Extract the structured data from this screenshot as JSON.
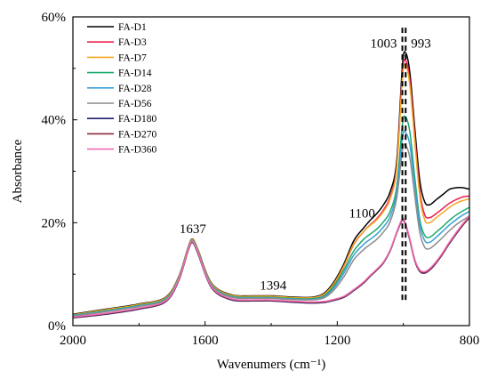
{
  "chart_data": {
    "type": "line",
    "title": "",
    "xlabel": "Wavenumers (cm⁻¹)",
    "ylabel": "Absorbance",
    "xlim": [
      2000,
      800
    ],
    "ylim": [
      0,
      60
    ],
    "x_reversed": true,
    "x_ticks": [
      2000,
      1600,
      1200,
      800
    ],
    "x_tick_labels": [
      "2000",
      "1600",
      "1200",
      "800"
    ],
    "y_ticks": [
      0,
      20,
      40,
      60
    ],
    "y_tick_labels": [
      "0%",
      "20%",
      "40%",
      "60%"
    ],
    "grid": false,
    "legend_position": "top-left",
    "annotations": [
      {
        "text": "1637",
        "x": 1637,
        "y": 18
      },
      {
        "text": "1394",
        "x": 1394,
        "y": 7
      },
      {
        "text": "1100",
        "x": 1125,
        "y": 21
      },
      {
        "text": "1003",
        "x": 1003,
        "y": 54
      },
      {
        "text": "993",
        "x": 993,
        "y": 54
      }
    ],
    "reference_lines": [
      {
        "x": 1003,
        "y_range": [
          5,
          58
        ]
      },
      {
        "x": 993,
        "y_range": [
          5,
          58
        ]
      }
    ],
    "series": [
      {
        "name": "FA-D1",
        "color": "#000000",
        "x": [
          2000,
          1900,
          1800,
          1720,
          1680,
          1650,
          1637,
          1620,
          1580,
          1520,
          1450,
          1400,
          1350,
          1280,
          1240,
          1210,
          1180,
          1150,
          1120,
          1100,
          1080,
          1060,
          1040,
          1020,
          1003,
          993,
          980,
          965,
          950,
          935,
          920,
          900,
          880,
          860,
          840,
          820,
          800
        ],
        "y": [
          2.2,
          3.2,
          4.2,
          5.5,
          9.5,
          15.5,
          16.8,
          14.5,
          8.2,
          6,
          5.8,
          5.8,
          5.6,
          5.5,
          6.3,
          8.5,
          12,
          16.5,
          19,
          20.5,
          21.8,
          23.5,
          26,
          32,
          50.5,
          53,
          49,
          38,
          28,
          24,
          23.5,
          24.5,
          25.5,
          26.5,
          26.8,
          26.8,
          26.5
        ]
      },
      {
        "name": "FA-D3",
        "color": "#ed1c4e",
        "x": [
          2000,
          1900,
          1800,
          1720,
          1680,
          1650,
          1637,
          1620,
          1580,
          1520,
          1450,
          1400,
          1350,
          1280,
          1240,
          1210,
          1180,
          1150,
          1120,
          1100,
          1080,
          1060,
          1040,
          1020,
          1003,
          993,
          980,
          965,
          950,
          935,
          920,
          900,
          880,
          860,
          840,
          820,
          800
        ],
        "y": [
          2,
          3,
          4,
          5.3,
          9.3,
          15.3,
          16.6,
          14.3,
          8,
          5.8,
          5.6,
          5.6,
          5.4,
          5.3,
          6,
          8,
          11.5,
          15.8,
          18.3,
          19.6,
          20.8,
          22.5,
          25,
          31,
          49,
          51.5,
          47.5,
          36.5,
          26,
          21.5,
          21,
          21.8,
          22.8,
          23.8,
          24.5,
          25,
          25.2
        ]
      },
      {
        "name": "FA-D7",
        "color": "#f5a623",
        "x": [
          2000,
          1900,
          1800,
          1720,
          1680,
          1650,
          1637,
          1620,
          1580,
          1520,
          1450,
          1400,
          1350,
          1280,
          1240,
          1210,
          1180,
          1150,
          1120,
          1100,
          1080,
          1060,
          1040,
          1020,
          1003,
          993,
          980,
          965,
          950,
          935,
          920,
          900,
          880,
          860,
          840,
          820,
          800
        ],
        "y": [
          2.1,
          3.1,
          4.1,
          5.4,
          9.4,
          15.4,
          16.7,
          14.4,
          8.1,
          5.9,
          5.7,
          5.7,
          5.5,
          5.4,
          6.1,
          8.2,
          11.6,
          15.9,
          18.3,
          19.5,
          20.6,
          22.2,
          24.6,
          30.5,
          48,
          50.5,
          46.5,
          35.5,
          25,
          20.5,
          20,
          21,
          22,
          23,
          23.8,
          24.3,
          24.6
        ]
      },
      {
        "name": "FA-D14",
        "color": "#1aaa6b",
        "x": [
          2000,
          1900,
          1800,
          1720,
          1680,
          1650,
          1637,
          1620,
          1580,
          1520,
          1450,
          1400,
          1350,
          1280,
          1240,
          1210,
          1180,
          1150,
          1120,
          1100,
          1080,
          1060,
          1040,
          1020,
          1003,
          993,
          980,
          965,
          950,
          935,
          920,
          900,
          880,
          860,
          840,
          820,
          800
        ],
        "y": [
          2,
          2.9,
          3.9,
          5.2,
          9.2,
          15.2,
          16.5,
          14.2,
          7.9,
          5.7,
          5.5,
          5.5,
          5.3,
          5.2,
          5.8,
          7.7,
          10.8,
          14.5,
          16.8,
          17.8,
          18.8,
          20.2,
          22.2,
          27,
          39,
          40.5,
          37.5,
          28.5,
          20.5,
          17.5,
          17.2,
          18.2,
          19.3,
          20.5,
          21.5,
          22.3,
          23
        ]
      },
      {
        "name": "FA-D28",
        "color": "#3aa0d8",
        "x": [
          2000,
          1900,
          1800,
          1720,
          1680,
          1650,
          1637,
          1620,
          1580,
          1520,
          1450,
          1400,
          1350,
          1280,
          1240,
          1210,
          1180,
          1150,
          1120,
          1100,
          1080,
          1060,
          1040,
          1020,
          1003,
          993,
          980,
          965,
          950,
          935,
          920,
          900,
          880,
          860,
          840,
          820,
          800
        ],
        "y": [
          1.9,
          2.8,
          3.8,
          5.1,
          9.1,
          15.1,
          16.4,
          14.1,
          7.8,
          5.6,
          5.4,
          5.4,
          5.2,
          5.1,
          5.6,
          7.3,
          10.2,
          13.7,
          15.8,
          16.8,
          17.8,
          19.2,
          21.2,
          26,
          36.5,
          37.5,
          35,
          27,
          19.5,
          16.5,
          16.2,
          17.2,
          18.4,
          19.6,
          20.6,
          21.5,
          22.2
        ]
      },
      {
        "name": "FA-D56",
        "color": "#8c8c8c",
        "x": [
          2000,
          1900,
          1800,
          1720,
          1680,
          1650,
          1637,
          1620,
          1580,
          1520,
          1450,
          1400,
          1350,
          1280,
          1240,
          1210,
          1180,
          1150,
          1120,
          1100,
          1080,
          1060,
          1040,
          1020,
          1003,
          993,
          980,
          965,
          950,
          935,
          920,
          900,
          880,
          860,
          840,
          820,
          800
        ],
        "y": [
          1.8,
          2.7,
          3.7,
          5,
          9,
          15,
          16.3,
          14,
          7.7,
          5.5,
          5.3,
          5.3,
          5.1,
          5,
          5.4,
          6.9,
          9.5,
          12.8,
          14.8,
          15.8,
          16.8,
          18.2,
          20.2,
          24.8,
          34,
          35,
          32.5,
          25,
          18,
          15.2,
          15,
          16,
          17.2,
          18.5,
          19.6,
          20.5,
          21.3
        ]
      },
      {
        "name": "FA-D180",
        "color": "#1f1f6e",
        "x": [
          2000,
          1900,
          1800,
          1720,
          1680,
          1650,
          1637,
          1620,
          1580,
          1520,
          1450,
          1400,
          1350,
          1280,
          1240,
          1210,
          1180,
          1150,
          1120,
          1100,
          1080,
          1060,
          1040,
          1020,
          1003,
          993,
          980,
          965,
          950,
          935,
          920,
          900,
          880,
          860,
          840,
          820,
          800
        ],
        "y": [
          1.5,
          2.2,
          3.2,
          4.6,
          8.7,
          14.8,
          16.1,
          13.7,
          7.3,
          5,
          4.8,
          4.8,
          4.6,
          4.4,
          4.5,
          4.9,
          5.5,
          6.8,
          8.3,
          9.6,
          10.8,
          12.2,
          14.5,
          18,
          20.5,
          19.5,
          16.5,
          12.5,
          10.5,
          10.2,
          10.8,
          12.2,
          14,
          16,
          17.8,
          19.5,
          21
        ]
      },
      {
        "name": "FA-D270",
        "color": "#8b2a3a",
        "x": [
          2000,
          1900,
          1800,
          1720,
          1680,
          1650,
          1637,
          1620,
          1580,
          1520,
          1450,
          1400,
          1350,
          1280,
          1240,
          1210,
          1180,
          1150,
          1120,
          1100,
          1080,
          1060,
          1040,
          1020,
          1003,
          993,
          980,
          965,
          950,
          935,
          920,
          900,
          880,
          860,
          840,
          820,
          800
        ],
        "y": [
          1.6,
          2.3,
          3.3,
          4.7,
          8.8,
          14.9,
          16.2,
          13.8,
          7.4,
          5.1,
          4.9,
          4.9,
          4.7,
          4.5,
          4.6,
          5,
          5.6,
          6.9,
          8.4,
          9.7,
          10.9,
          12.3,
          14.6,
          18.1,
          20.6,
          19.6,
          16.6,
          12.6,
          10.6,
          10.3,
          10.9,
          12.3,
          14.1,
          16.1,
          17.9,
          19.6,
          21.1
        ]
      },
      {
        "name": "FA-D360",
        "color": "#f06bb4",
        "x": [
          2000,
          1900,
          1800,
          1720,
          1680,
          1650,
          1637,
          1620,
          1580,
          1520,
          1450,
          1400,
          1350,
          1280,
          1240,
          1210,
          1180,
          1150,
          1120,
          1100,
          1080,
          1060,
          1040,
          1020,
          1003,
          993,
          980,
          965,
          950,
          935,
          920,
          900,
          880,
          860,
          840,
          820,
          800
        ],
        "y": [
          1.7,
          2.4,
          3.4,
          4.8,
          8.9,
          15,
          16.3,
          13.9,
          7.5,
          5.2,
          5,
          5,
          4.8,
          4.6,
          4.7,
          5.1,
          5.7,
          7,
          8.5,
          9.8,
          11,
          12.4,
          14.7,
          18.2,
          20.8,
          19.8,
          16.8,
          12.8,
          10.8,
          10.5,
          11.1,
          12.5,
          14.3,
          16.3,
          18.1,
          19.8,
          21.3
        ]
      }
    ]
  }
}
